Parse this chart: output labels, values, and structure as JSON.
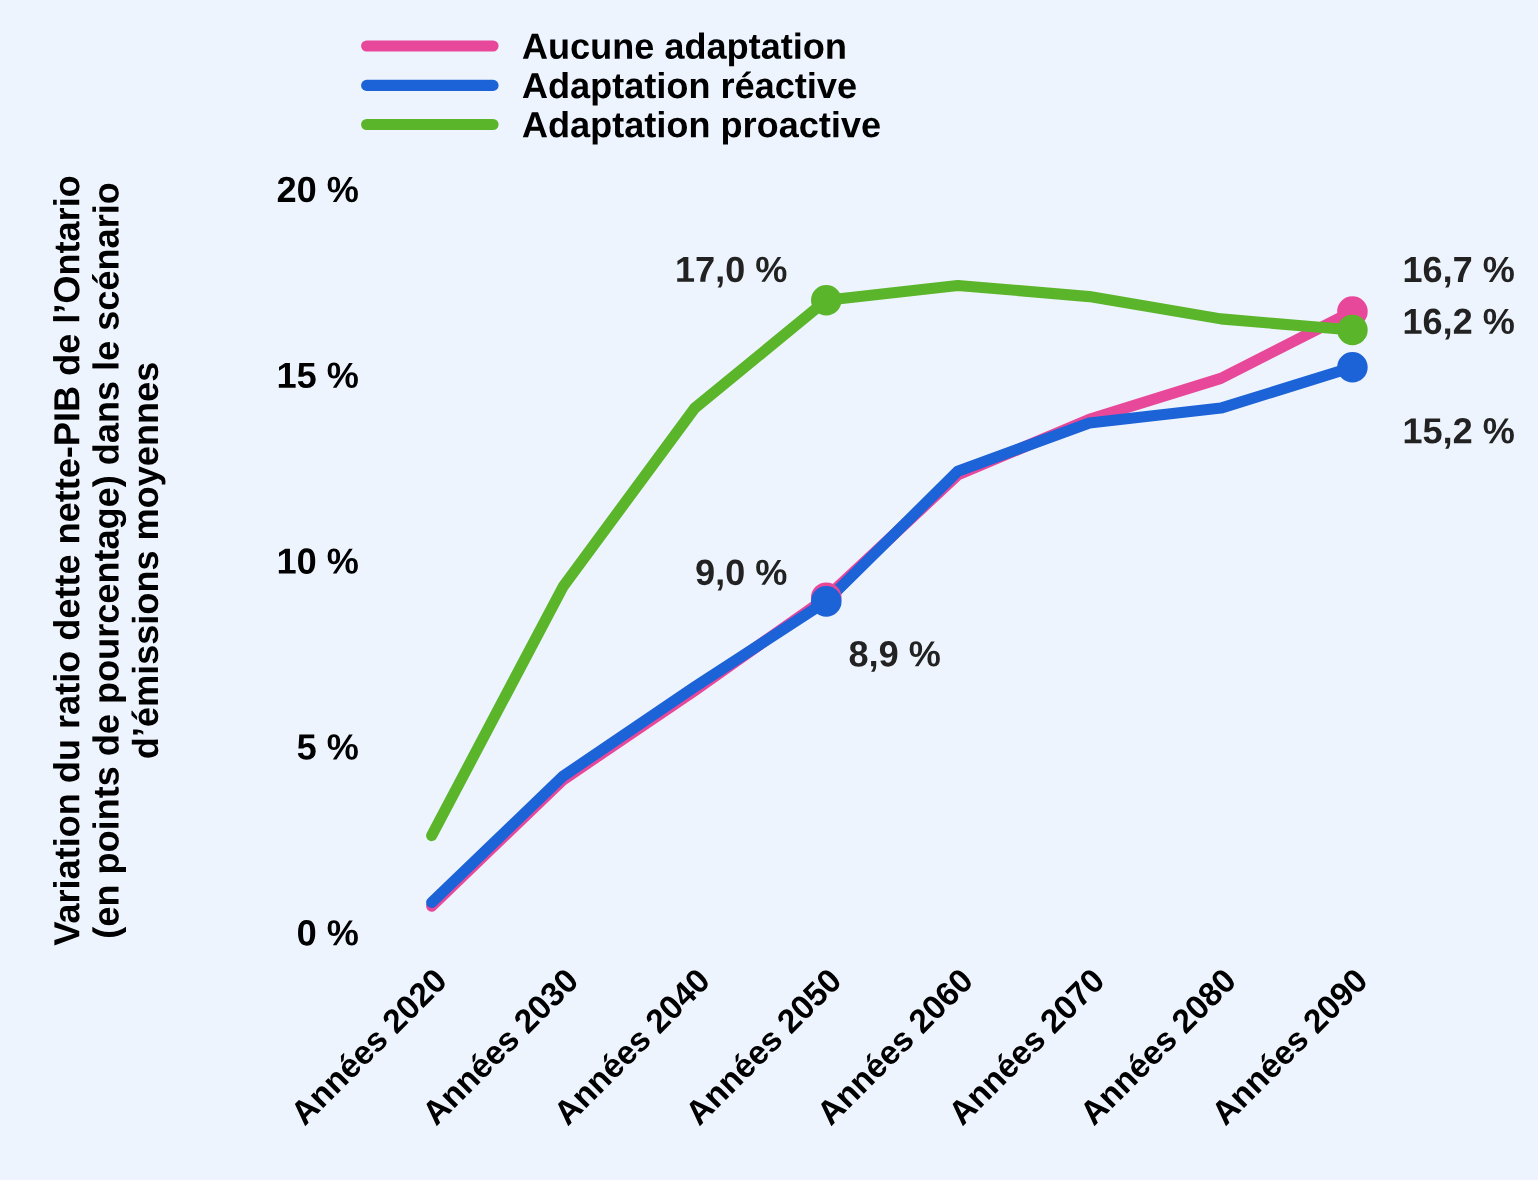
{
  "chart_data": {
    "type": "line",
    "ylabel": "Variation du ratio dette nette-PIB de l’Ontario\n(en points de pourcentage) dans le scénario\nd’émissions moyennes",
    "categories": [
      "Années 2020",
      "Années 2030",
      "Années 2040",
      "Années 2050",
      "Années 2060",
      "Années 2070",
      "Années 2080",
      "Années 2090"
    ],
    "series": [
      {
        "name": "Aucune adaptation",
        "color": "#e8489a",
        "values": [
          0.7,
          4.1,
          6.5,
          9.0,
          12.3,
          13.8,
          14.9,
          16.7
        ],
        "value_labels": [
          null,
          null,
          null,
          "9,0 %",
          null,
          null,
          null,
          "16,7 %"
        ]
      },
      {
        "name": "Adaptation réactive",
        "color": "#1c63d8",
        "values": [
          0.8,
          4.2,
          6.6,
          8.9,
          12.4,
          13.7,
          14.1,
          15.2
        ],
        "value_labels": [
          null,
          null,
          null,
          "8,9 %",
          null,
          null,
          null,
          "15,2 %"
        ]
      },
      {
        "name": "Adaptation proactive",
        "color": "#5bb52a",
        "values": [
          2.6,
          9.3,
          14.1,
          17.0,
          17.4,
          17.1,
          16.5,
          16.2
        ],
        "value_labels": [
          null,
          null,
          null,
          "17,0 %",
          null,
          null,
          null,
          "16,2 %"
        ]
      }
    ],
    "ylim": [
      0,
      20
    ],
    "yticks": [
      {
        "value": 0,
        "label": "0 %"
      },
      {
        "value": 5,
        "label": "5 %"
      },
      {
        "value": 10,
        "label": "10 %"
      },
      {
        "value": 15,
        "label": "15 %"
      },
      {
        "value": 20,
        "label": "20 %"
      }
    ],
    "legend": "top",
    "grid": false
  }
}
